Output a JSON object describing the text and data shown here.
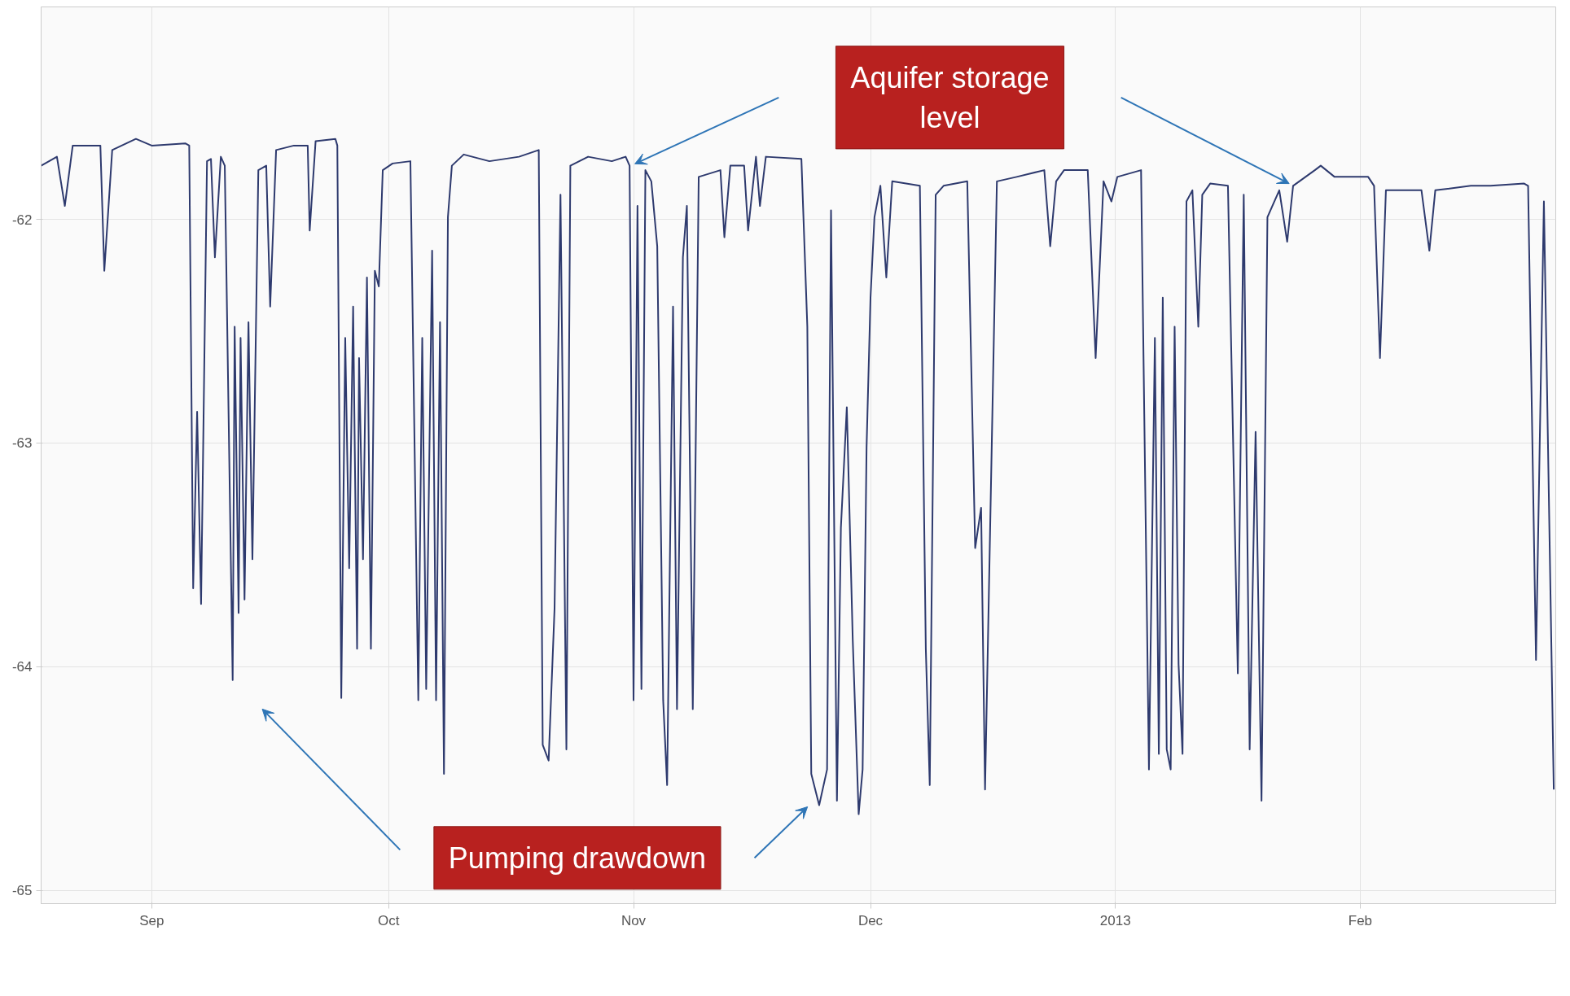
{
  "chart_data": {
    "type": "line",
    "xlim": [
      "2012-08-18",
      "2013-02-25T18:00"
    ],
    "ylim": [
      -65.06,
      -61.05
    ],
    "yticks": [
      -62,
      -63,
      -64,
      -65
    ],
    "xticks": [
      {
        "value": "2012-09-01",
        "label": "Sep"
      },
      {
        "value": "2012-10-01",
        "label": "Oct"
      },
      {
        "value": "2012-11-01",
        "label": "Nov"
      },
      {
        "value": "2012-12-01",
        "label": "Dec"
      },
      {
        "value": "2013-01-01",
        "label": "2013"
      },
      {
        "value": "2013-02-01",
        "label": "Feb"
      }
    ],
    "grid": true,
    "annotations": [
      "Aquifer storage level",
      "Pumping drawdown"
    ],
    "series": [
      {
        "color": "#2e3a6e",
        "x": [
          "2012-08-18",
          "2012-08-20",
          "2012-08-21",
          "2012-08-22",
          "2012-08-25T12:00",
          "2012-08-26",
          "2012-08-27",
          "2012-08-30",
          "2012-09-01",
          "2012-09-05T06:00",
          "2012-09-05T18:00",
          "2012-09-06T06:00",
          "2012-09-06T18:00",
          "2012-09-07T06:00",
          "2012-09-08",
          "2012-09-08T12:00",
          "2012-09-09",
          "2012-09-09T18:00",
          "2012-09-10T06:00",
          "2012-09-11T06:00",
          "2012-09-11T12:00",
          "2012-09-12",
          "2012-09-12T06:00",
          "2012-09-12T18:00",
          "2012-09-13T06:00",
          "2012-09-13T18:00",
          "2012-09-14T12:00",
          "2012-09-15T12:00",
          "2012-09-16",
          "2012-09-16T18:00",
          "2012-09-19",
          "2012-09-20T18:00",
          "2012-09-21",
          "2012-09-21T18:00",
          "2012-09-24T06:00",
          "2012-09-24T12:00",
          "2012-09-25",
          "2012-09-25T12:00",
          "2012-09-26",
          "2012-09-26T12:00",
          "2012-09-27",
          "2012-09-27T06:00",
          "2012-09-27T18:00",
          "2012-09-28T06:00",
          "2012-09-28T18:00",
          "2012-09-29T06:00",
          "2012-09-29T18:00",
          "2012-09-30T06:00",
          "2012-10-01T12:00",
          "2012-10-03T18:00",
          "2012-10-04T18:00",
          "2012-10-05T06:00",
          "2012-10-05T18:00",
          "2012-10-06T12:00",
          "2012-10-07",
          "2012-10-07T12:00",
          "2012-10-08",
          "2012-10-08T12:00",
          "2012-10-09",
          "2012-10-10T12:00",
          "2012-10-13T18:00",
          "2012-10-17T12:00",
          "2012-10-20",
          "2012-10-20T12:00",
          "2012-10-21T06:00",
          "2012-10-22",
          "2012-10-22T18:00",
          "2012-10-23T12:00",
          "2012-10-24",
          "2012-10-26T06:00",
          "2012-10-29T06:00",
          "2012-10-31",
          "2012-10-31T12:00",
          "2012-11-01",
          "2012-11-01T12:00",
          "2012-11-02",
          "2012-11-02T12:00",
          "2012-11-03T06:00",
          "2012-11-04",
          "2012-11-04T18:00",
          "2012-11-05T06:00",
          "2012-11-06",
          "2012-11-06T12:00",
          "2012-11-07T06:00",
          "2012-11-07T18:00",
          "2012-11-08T12:00",
          "2012-11-09T06:00",
          "2012-11-12",
          "2012-11-12T12:00",
          "2012-11-13T06:00",
          "2012-11-15",
          "2012-11-15T12:00",
          "2012-11-16T12:00",
          "2012-11-17",
          "2012-11-17T18:00",
          "2012-11-22T06:00",
          "2012-11-23",
          "2012-11-23T12:00",
          "2012-11-24T12:00",
          "2012-11-25T12:00",
          "2012-11-26",
          "2012-11-26T18:00",
          "2012-11-27T06:00",
          "2012-11-28",
          "2012-11-28T18:00",
          "2012-11-29T12:00",
          "2012-11-30",
          "2012-11-30T12:00",
          "2012-12-01",
          "2012-12-01T12:00",
          "2012-12-02T06:00",
          "2012-12-03",
          "2012-12-03T18:00",
          "2012-12-07T06:00",
          "2012-12-08",
          "2012-12-08T12:00",
          "2012-12-09T06:00",
          "2012-12-10T06:00",
          "2012-12-13T06:00",
          "2012-12-14T06:00",
          "2012-12-15",
          "2012-12-15T12:00",
          "2012-12-17",
          "2012-12-19T12:00",
          "2012-12-23",
          "2012-12-23T18:00",
          "2012-12-24T12:00",
          "2012-12-25T12:00",
          "2012-12-28T12:00",
          "2012-12-29T12:00",
          "2012-12-30T12:00",
          "2012-12-31T12:00",
          "2013-01-01T06:00",
          "2013-01-04T06:00",
          "2013-01-05T06:00",
          "2013-01-06",
          "2013-01-06T12:00",
          "2013-01-07",
          "2013-01-07T12:00",
          "2013-01-08",
          "2013-01-08T12:00",
          "2013-01-09",
          "2013-01-09T12:00",
          "2013-01-10",
          "2013-01-10T18:00",
          "2013-01-11T12:00",
          "2013-01-12",
          "2013-01-13",
          "2013-01-15T06:00",
          "2013-01-16T12:00",
          "2013-01-17T06:00",
          "2013-01-18",
          "2013-01-18T18:00",
          "2013-01-19T12:00",
          "2013-01-20T06:00",
          "2013-01-21T18:00",
          "2013-01-22T18:00",
          "2013-01-23T12:00",
          "2013-01-26T06:00",
          "2013-01-27",
          "2013-01-28T18:00",
          "2013-02-02",
          "2013-02-02T18:00",
          "2013-02-03T12:00",
          "2013-02-04T06:00",
          "2013-02-08T18:00",
          "2013-02-09T18:00",
          "2013-02-10T12:00",
          "2013-02-15",
          "2013-02-17T12:00",
          "2013-02-21T18:00",
          "2013-02-22T06:00",
          "2013-02-23T06:00",
          "2013-02-24T06:00",
          "2013-02-25T12:00"
        ],
        "values": [
          -61.76,
          -61.72,
          -61.94,
          -61.67,
          -61.67,
          -62.23,
          -61.69,
          -61.64,
          -61.67,
          -61.66,
          -61.67,
          -63.65,
          -62.86,
          -63.72,
          -61.74,
          -61.73,
          -62.17,
          -61.72,
          -61.76,
          -64.06,
          -62.48,
          -63.76,
          -62.53,
          -63.7,
          -62.46,
          -63.52,
          -61.78,
          -61.76,
          -62.39,
          -61.69,
          -61.67,
          -61.67,
          -62.05,
          -61.65,
          -61.64,
          -61.67,
          -64.14,
          -62.53,
          -63.56,
          -62.39,
          -63.92,
          -62.62,
          -63.52,
          -62.26,
          -63.92,
          -62.23,
          -62.3,
          -61.78,
          -61.75,
          -61.74,
          -64.15,
          -62.53,
          -64.1,
          -62.14,
          -64.15,
          -62.46,
          -64.48,
          -61.99,
          -61.76,
          -61.71,
          -61.74,
          -61.72,
          -61.69,
          -64.35,
          -64.42,
          -63.74,
          -61.89,
          -64.37,
          -61.76,
          -61.72,
          -61.74,
          -61.72,
          -61.76,
          -64.15,
          -61.94,
          -64.1,
          -61.78,
          -61.83,
          -62.12,
          -64.15,
          -64.53,
          -62.39,
          -64.19,
          -62.17,
          -61.94,
          -64.19,
          -61.81,
          -61.78,
          -62.08,
          -61.76,
          -61.76,
          -62.05,
          -61.72,
          -61.94,
          -61.72,
          -61.73,
          -62.48,
          -64.48,
          -64.62,
          -64.46,
          -61.96,
          -64.6,
          -63.38,
          -62.84,
          -63.88,
          -64.66,
          -64.46,
          -63.02,
          -62.35,
          -61.99,
          -61.85,
          -62.26,
          -61.83,
          -61.85,
          -63.92,
          -64.53,
          -61.89,
          -61.85,
          -61.83,
          -63.47,
          -63.29,
          -64.55,
          -61.83,
          -61.81,
          -61.78,
          -62.12,
          -61.83,
          -61.78,
          -61.78,
          -62.62,
          -61.83,
          -61.92,
          -61.81,
          -61.78,
          -64.46,
          -62.53,
          -64.39,
          -62.35,
          -64.37,
          -64.46,
          -62.48,
          -63.99,
          -64.39,
          -61.92,
          -61.87,
          -62.48,
          -61.89,
          -61.84,
          -61.85,
          -64.03,
          -61.89,
          -64.37,
          -62.95,
          -64.6,
          -61.99,
          -61.87,
          -62.1,
          -61.85,
          -61.78,
          -61.76,
          -61.81,
          -61.81,
          -61.85,
          -62.62,
          -61.87,
          -61.87,
          -62.14,
          -61.87,
          -61.85,
          -61.85,
          -61.84,
          -61.85,
          -63.97,
          -61.92,
          -64.55
        ]
      }
    ]
  }
}
